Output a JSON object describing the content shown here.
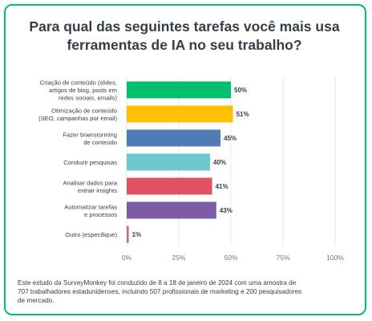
{
  "title_lines": [
    "Para qual das seguintes tarefas você mais usa",
    "ferramentas de IA no seu trabalho?"
  ],
  "chart_data": {
    "type": "bar",
    "orientation": "horizontal",
    "categories": [
      [
        "Criação de conteúdo (slides,",
        "artigos de blog, posts em",
        "redes sociais, emails)"
      ],
      [
        "Otimização de conteúdo",
        "(SEO, campanhas por email)"
      ],
      [
        "Fazer brainstorming",
        "de conteúdo"
      ],
      [
        "Conduzir pesquisas"
      ],
      [
        "Analisar dados para",
        "extrair insights"
      ],
      [
        "Automatizar tarefas",
        "e processos"
      ],
      [
        "Outro (especifique)"
      ]
    ],
    "values": [
      50,
      51,
      45,
      40,
      41,
      43,
      1
    ],
    "value_labels": [
      "50%",
      "51%",
      "45%",
      "40%",
      "41%",
      "43%",
      "1%"
    ],
    "colors": [
      "#00bf6f",
      "#ffc000",
      "#507cb6",
      "#6bc8cd",
      "#e05263",
      "#7d5ba6",
      "#d25f90"
    ],
    "xlim": [
      0,
      100
    ],
    "xticks": [
      0,
      25,
      50,
      75,
      100
    ],
    "xtick_labels": [
      "0%",
      "25%",
      "50%",
      "75%",
      "100%"
    ],
    "grid": true
  },
  "note_lines": [
    "Este estudo da SurveyMonkey foi conduzido de 8 a 18 de janeiro de 2024 com uma amostra de",
    "707 trabalhadores estadunidenses, incluindo 507 profissionais de marketing e 200 pesquisadores",
    "de mercado."
  ]
}
